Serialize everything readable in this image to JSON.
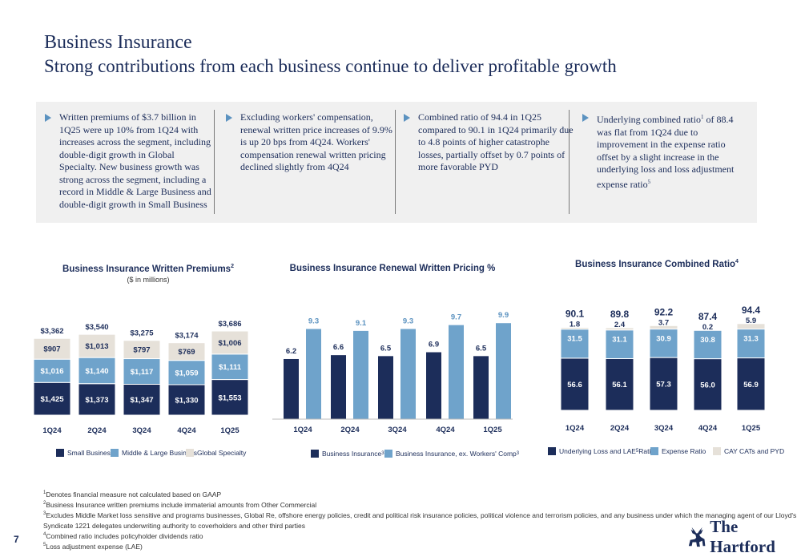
{
  "header": {
    "title": "Business Insurance",
    "subtitle": "Strong contributions from each business continue to deliver profitable growth"
  },
  "bullets": [
    {
      "text": "Written premiums of $3.7 billion in 1Q25 were up 10% from 1Q24 with increases across the segment, including double-digit growth in Global Specialty. New business growth was strong across the segment, including a record in Middle & Large Business and double-digit growth in Small Business"
    },
    {
      "text": "Excluding workers' compensation, renewal written price increases of 9.9% is up 20 bps from 4Q24. Workers' compensation renewal written pricing declined slightly from 4Q24"
    },
    {
      "text": "Combined ratio of 94.4 in 1Q25 compared to 90.1 in 1Q24 primarily due to 4.8 points of higher catastrophe losses, partially offset by 0.7 points of more favorable PYD"
    },
    {
      "text_before": "Underlying combined ratio",
      "sup1": "1",
      "text_mid": " of 88.4 was flat from 1Q24 due to improvement in the expense ratio offset by a slight increase in the underlying loss and loss adjustment expense ratio",
      "sup2": "5"
    }
  ],
  "colors": {
    "navy": "#1c2d5a",
    "mid_blue": "#6fa3cb",
    "light": "#e6e1d9",
    "accent": "#5b92c0"
  },
  "chart_data": [
    {
      "type": "bar",
      "stacked": true,
      "title": "Business Insurance Written Premiums",
      "title_sup": "2",
      "units": "($ in millions)",
      "categories": [
        "1Q24",
        "2Q24",
        "3Q24",
        "4Q24",
        "1Q25"
      ],
      "series": [
        {
          "name": "Small Business",
          "values": [
            1425,
            1373,
            1347,
            1330,
            1553
          ],
          "labels": [
            "$1,425",
            "$1,373",
            "$1,347",
            "$1,330",
            "$1,553"
          ]
        },
        {
          "name": "Middle & Large Business",
          "values": [
            1016,
            1140,
            1117,
            1059,
            1111
          ],
          "labels": [
            "$1,016",
            "$1,140",
            "$1,117",
            "$1,059",
            "$1,111"
          ]
        },
        {
          "name": "Global Specialty",
          "values": [
            907,
            1013,
            797,
            769,
            1006
          ],
          "labels": [
            "$907",
            "$1,013",
            "$797",
            "$769",
            "$1,006"
          ]
        }
      ],
      "totals": [
        "$3,362",
        "$3,540",
        "$3,275",
        "$3,174",
        "$3,686"
      ]
    },
    {
      "type": "bar",
      "title": "Business Insurance Renewal Written Pricing %",
      "categories": [
        "1Q24",
        "2Q24",
        "3Q24",
        "4Q24",
        "1Q25"
      ],
      "series": [
        {
          "name": "Business Insurance",
          "name_sup": "3",
          "values": [
            6.2,
            6.6,
            6.5,
            6.9,
            6.5
          ],
          "labels": [
            "6.2",
            "6.6",
            "6.5",
            "6.9",
            "6.5"
          ]
        },
        {
          "name": "Business Insurance, ex. Workers' Comp",
          "name_sup": "3",
          "values": [
            9.3,
            9.1,
            9.3,
            9.7,
            9.9
          ],
          "labels": [
            "9.3",
            "9.1",
            "9.3",
            "9.7",
            "9.9"
          ]
        }
      ]
    },
    {
      "type": "bar",
      "stacked": true,
      "title": "Business Insurance Combined Ratio",
      "title_sup": "4",
      "categories": [
        "1Q24",
        "2Q24",
        "3Q24",
        "4Q24",
        "1Q25"
      ],
      "series": [
        {
          "name_before": "Underlying Loss and LAE",
          "name_sup1": "5",
          "name_mid": " Ratio",
          "name_sup2": "1",
          "values": [
            56.6,
            56.1,
            57.3,
            56.0,
            56.9
          ],
          "labels": [
            "56.6",
            "56.1",
            "57.3",
            "56.0",
            "56.9"
          ]
        },
        {
          "name": "Expense Ratio",
          "values": [
            31.5,
            31.1,
            30.9,
            30.8,
            31.3
          ],
          "labels": [
            "31.5",
            "31.1",
            "30.9",
            "30.8",
            "31.3"
          ]
        },
        {
          "name": "CAY CATs and PYD",
          "values": [
            1.8,
            2.4,
            3.7,
            0.2,
            5.9
          ],
          "labels": [
            "1.8",
            "2.4",
            "3.7",
            "0.2",
            "5.9"
          ]
        }
      ],
      "totals": [
        "90.1",
        "89.8",
        "92.2",
        "87.4",
        "94.4"
      ]
    }
  ],
  "footnotes": [
    {
      "sup": "1",
      "text": "Denotes financial measure not calculated based on GAAP"
    },
    {
      "sup": "2",
      "text": "Business Insurance written premiums include immaterial amounts from Other Commercial"
    },
    {
      "sup": "3",
      "text": "Excludes Middle Market loss sensitive and programs businesses, Global Re, offshore energy policies, credit and political risk insurance policies, political violence and terrorism policies, and any business under which the managing agent of our Lloyd's"
    },
    {
      "sup": "",
      "text": "Syndicate 1221 delegates underwriting authority to coverholders and other third parties"
    },
    {
      "sup": "4",
      "text": "Combined ratio includes policyholder dividends ratio"
    },
    {
      "sup": "5",
      "text": "Loss adjustment expense (LAE)"
    }
  ],
  "page_number": "7",
  "logo": {
    "text": "The Hartford",
    "icon": "stag-icon"
  }
}
